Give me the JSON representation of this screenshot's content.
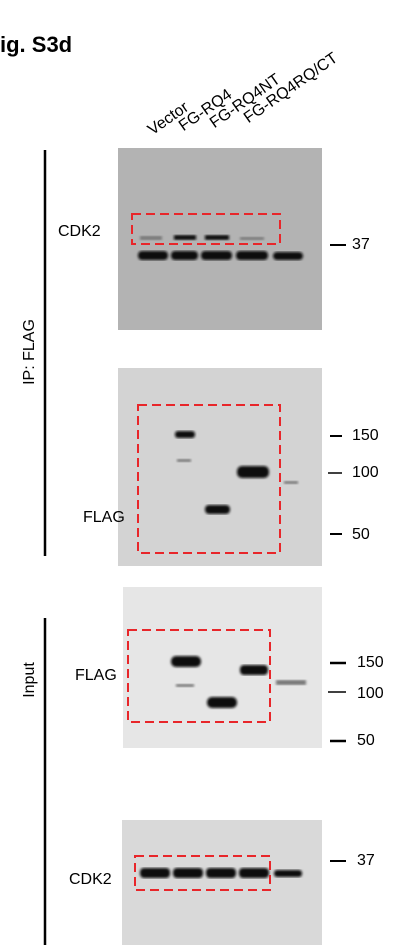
{
  "header": {
    "title": "ig. S3d"
  },
  "lanes": [
    "Vector",
    "FG-RQ4",
    "FG-RQ4NT",
    "FG-RQ4RQ/CT"
  ],
  "groups": [
    {
      "label": "IP: FLAG"
    },
    {
      "label": "Input"
    }
  ],
  "panels": [
    {
      "label": "CDK2",
      "markers": [
        "37"
      ]
    },
    {
      "label": "FLAG",
      "markers": [
        "150",
        "100",
        "50"
      ]
    },
    {
      "label": "FLAG",
      "markers": [
        "150",
        "100",
        "50"
      ]
    },
    {
      "label": "CDK2",
      "markers": [
        "37"
      ]
    }
  ]
}
